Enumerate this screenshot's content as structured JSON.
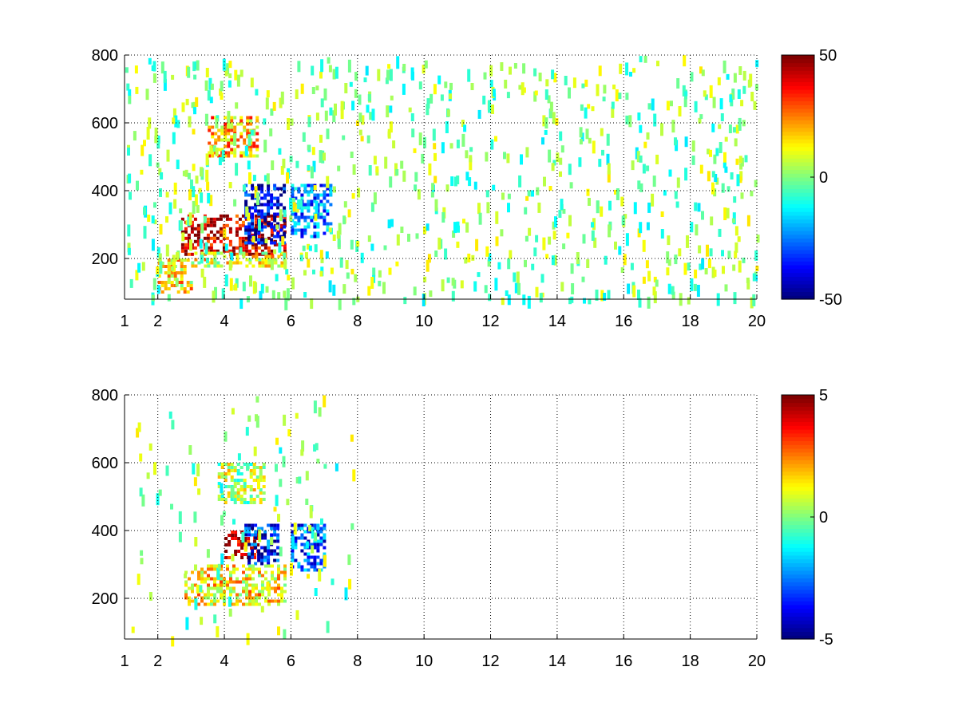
{
  "figure": {
    "background": "#ffffff"
  },
  "chart_data": [
    {
      "type": "heatmap",
      "title": "",
      "xlabel": "",
      "ylabel": "",
      "xlim": [
        1,
        20
      ],
      "ylim": [
        80,
        800
      ],
      "x_ticks": [
        1,
        2,
        4,
        6,
        8,
        10,
        12,
        14,
        16,
        18,
        20
      ],
      "x_tick_labels": [
        "1",
        "2",
        "4",
        "6",
        "8",
        "10",
        "12",
        "14",
        "16",
        "18",
        "20"
      ],
      "y_ticks": [
        200,
        400,
        600,
        800
      ],
      "y_tick_labels": [
        "200",
        "400",
        "600",
        "800"
      ],
      "grid": "dotted",
      "colormap": "jet",
      "clim": [
        -50,
        50
      ],
      "colorbar_ticks": [
        -50,
        0,
        50
      ],
      "colorbar_tick_labels": [
        "-50",
        "0",
        "50"
      ],
      "features": [
        {
          "x": [
            2.7,
            5.8
          ],
          "y": [
            210,
            330
          ],
          "level": 42
        },
        {
          "x": [
            4.6,
            5.8
          ],
          "y": [
            250,
            420
          ],
          "level": -40
        },
        {
          "x": [
            6.0,
            7.2
          ],
          "y": [
            260,
            420
          ],
          "level": -25
        },
        {
          "x": [
            3.5,
            5.0
          ],
          "y": [
            500,
            620
          ],
          "level": 20
        },
        {
          "x": [
            3.0,
            5.8
          ],
          "y": [
            180,
            220
          ],
          "level": 12
        },
        {
          "x": [
            2.0,
            3.0
          ],
          "y": [
            100,
            200
          ],
          "level": 15
        }
      ]
    },
    {
      "type": "heatmap",
      "title": "",
      "xlabel": "",
      "ylabel": "",
      "xlim": [
        1,
        20
      ],
      "ylim": [
        80,
        800
      ],
      "x_ticks": [
        1,
        2,
        4,
        6,
        8,
        10,
        12,
        14,
        16,
        18,
        20
      ],
      "x_tick_labels": [
        "1",
        "2",
        "4",
        "6",
        "8",
        "10",
        "12",
        "14",
        "16",
        "18",
        "20"
      ],
      "y_ticks": [
        200,
        400,
        600,
        800
      ],
      "y_tick_labels": [
        "200",
        "400",
        "600",
        "800"
      ],
      "grid": "dotted",
      "colormap": "jet",
      "clim": [
        -5,
        5
      ],
      "colorbar_ticks": [
        -5,
        0,
        5
      ],
      "colorbar_tick_labels": [
        "-5",
        "0",
        "5"
      ],
      "features": [
        {
          "x": [
            4.0,
            5.0
          ],
          "y": [
            320,
            400
          ],
          "level": 4.5
        },
        {
          "x": [
            4.6,
            5.6
          ],
          "y": [
            300,
            420
          ],
          "level": -3.5
        },
        {
          "x": [
            6.0,
            7.0
          ],
          "y": [
            280,
            420
          ],
          "level": -3.0
        },
        {
          "x": [
            2.8,
            5.8
          ],
          "y": [
            180,
            300
          ],
          "level": 1.5
        },
        {
          "x": [
            3.8,
            5.2
          ],
          "y": [
            480,
            600
          ],
          "level": 0.5
        }
      ]
    }
  ]
}
